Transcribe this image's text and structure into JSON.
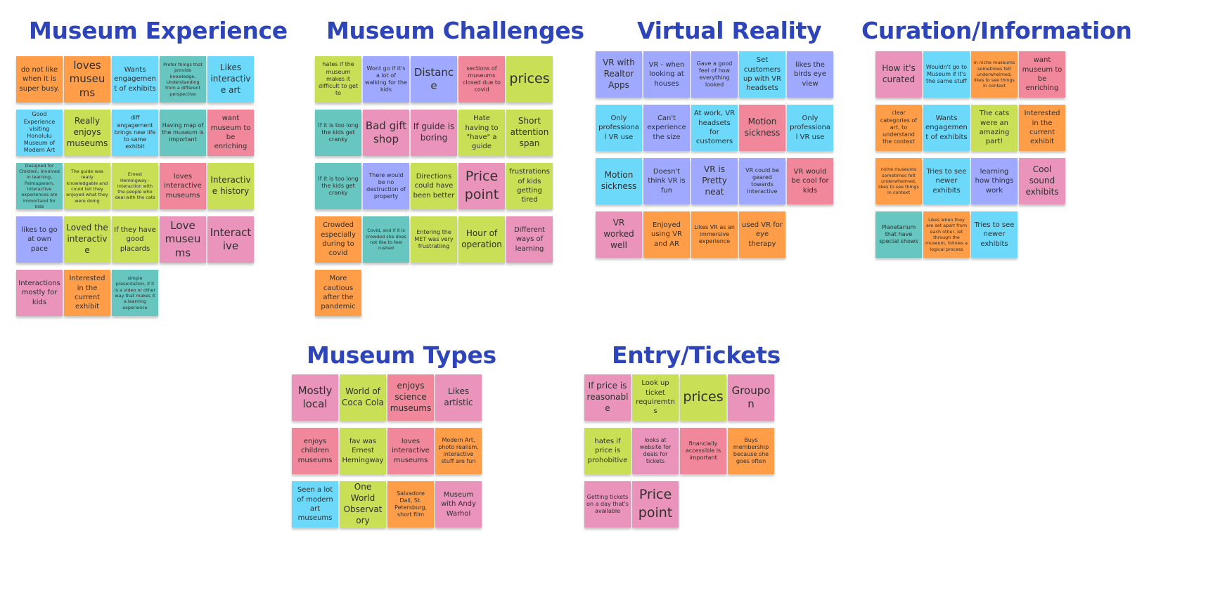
{
  "clusters": [
    {
      "id": "museum-experience",
      "title": "Museum Experience",
      "notes": [
        {
          "text": "do not like when it is super busy.",
          "color": "#ff9d48"
        },
        {
          "text": "loves museums",
          "color": "#ff9d48"
        },
        {
          "text": "Wants engagement of exhibits",
          "color": "#6cd8fa"
        },
        {
          "text": "Prefer things that provide knowledge, Understanding from a different perspective",
          "color": "#67c6c0"
        },
        {
          "text": "Likes interactive art",
          "color": "#6cd8fa"
        },
        {
          "text": "Good Experience visiting Honolulu Museum of Modern Art",
          "color": "#6cd8fa"
        },
        {
          "text": "Really enjoys museums",
          "color": "#c9df56"
        },
        {
          "text": "diff engagement brings new life to same exhibit",
          "color": "#6cd8fa"
        },
        {
          "text": "Having map of the museum is important",
          "color": "#67c6c0"
        },
        {
          "text": "want museum to be enriching",
          "color": "#f0879a"
        },
        {
          "text": "Designed for Children, Involved in learning, Palmuparam, Interactive experiences are immortand for kids",
          "color": "#67c6c0"
        },
        {
          "text": "The guide was really knowledgable and could tell they enjoyed what they were doing",
          "color": "#c9df56"
        },
        {
          "text": "Ernest Hemingway - interaction with the people who deal with the cats",
          "color": "#c9df56"
        },
        {
          "text": "loves interactive museums",
          "color": "#f0879a"
        },
        {
          "text": "Interactive history",
          "color": "#c9df56"
        },
        {
          "text": "likes to go at own pace",
          "color": "#9ea9ff"
        },
        {
          "text": "Loved the interactive",
          "color": "#c9df56"
        },
        {
          "text": "If they have good placards",
          "color": "#c9df56"
        },
        {
          "text": "Love museums",
          "color": "#ea94bb"
        },
        {
          "text": "Interactive",
          "color": "#ea94bb"
        },
        {
          "text": "Interactions mostly for kids",
          "color": "#ea94bb"
        },
        {
          "text": "Interested in the current exhibit",
          "color": "#ff9d48"
        },
        {
          "text": "simple presentation, if it is a video or other way that makes it a learning experience",
          "color": "#67c6c0"
        }
      ]
    },
    {
      "id": "museum-challenges",
      "title": "Museum Challenges",
      "notes": [
        {
          "text": "hates if the museum makes it difficult to get to",
          "color": "#c9df56"
        },
        {
          "text": "Wont go if it's a lot of walking for the kids",
          "color": "#9ea9ff"
        },
        {
          "text": "Distance",
          "color": "#9ea9ff"
        },
        {
          "text": "sections of museums closed due to covid",
          "color": "#f0879a"
        },
        {
          "text": "prices",
          "color": "#c9df56"
        },
        {
          "text": "If it is too long the kids get cranky",
          "color": "#67c6c0"
        },
        {
          "text": "Bad gift shop",
          "color": "#ea94bb"
        },
        {
          "text": "If guide is boring",
          "color": "#ea94bb"
        },
        {
          "text": "Hate having to \"have\" a guide",
          "color": "#c9df56"
        },
        {
          "text": "Short attention span",
          "color": "#c9df56"
        },
        {
          "text": "If it is too long the kids get cranky",
          "color": "#67c6c0"
        },
        {
          "text": "There would be no destruction of property",
          "color": "#9ea9ff"
        },
        {
          "text": "Directions could have been better",
          "color": "#c9df56"
        },
        {
          "text": "Price point",
          "color": "#ea94bb"
        },
        {
          "text": "frustrations of kids getting tired",
          "color": "#c9df56"
        },
        {
          "text": "Crowded especially during to covid",
          "color": "#ff9d48"
        },
        {
          "text": "Covid, and if it is crowded she does not like to feel rushed",
          "color": "#67c6c0"
        },
        {
          "text": "Entering the MET was very frustratiing",
          "color": "#c9df56"
        },
        {
          "text": "Hour of operation",
          "color": "#c9df56"
        },
        {
          "text": "Different ways of learning",
          "color": "#ea94bb"
        },
        {
          "text": "More cautious after the pandemic",
          "color": "#ff9d48"
        }
      ]
    },
    {
      "id": "virtual-reality",
      "title": "Virtual Reality",
      "notes": [
        {
          "text": "VR with Realtor Apps",
          "color": "#9ea9ff"
        },
        {
          "text": "VR - when looking at houses",
          "color": "#9ea9ff"
        },
        {
          "text": "Gave a good feel of how everything looked",
          "color": "#9ea9ff"
        },
        {
          "text": "Set customers up with VR headsets",
          "color": "#6cd8fa"
        },
        {
          "text": "likes the birds eye view",
          "color": "#9ea9ff"
        },
        {
          "text": "Only professional VR use",
          "color": "#6cd8fa"
        },
        {
          "text": "Can't experience the size",
          "color": "#9ea9ff"
        },
        {
          "text": "At work, VR headsets for customers",
          "color": "#6cd8fa"
        },
        {
          "text": "Motion sickness",
          "color": "#f0879a"
        },
        {
          "text": "Only professional VR use",
          "color": "#6cd8fa"
        },
        {
          "text": "Motion sickness",
          "color": "#6cd8fa"
        },
        {
          "text": "Doesn't think VR is fun",
          "color": "#9ea9ff"
        },
        {
          "text": "VR is Pretty neat",
          "color": "#9ea9ff"
        },
        {
          "text": "VR could be geared towards interactive",
          "color": "#9ea9ff"
        },
        {
          "text": "VR would be cool for kids",
          "color": "#f0879a"
        },
        {
          "text": "VR worked well",
          "color": "#ea94bb"
        },
        {
          "text": "Enjoyed using VR and AR",
          "color": "#ff9d48"
        },
        {
          "text": "Likes VR as an immersive experience",
          "color": "#ff9d48"
        },
        {
          "text": "used VR for eye therapy",
          "color": "#ff9d48"
        }
      ]
    },
    {
      "id": "curation-information",
      "title": "Curation/Information",
      "notes": [
        {
          "text": "How it's curated",
          "color": "#ea94bb"
        },
        {
          "text": "Wouldn't go to Museum if it's the same stuff",
          "color": "#6cd8fa"
        },
        {
          "text": "in niche museums sometimes felt underwhelmed, likes to see things in context",
          "color": "#ff9d48"
        },
        {
          "text": "want museum to be enriching",
          "color": "#f0879a"
        },
        {
          "text": "clear categories of art, to understand the context",
          "color": "#ff9d48"
        },
        {
          "text": "Wants engagement of exhibits",
          "color": "#6cd8fa"
        },
        {
          "text": "The cats were an amazing part!",
          "color": "#c9df56"
        },
        {
          "text": "Interested in the current exhibit",
          "color": "#ff9d48"
        },
        {
          "text": "niche museums sometimes felt underwhelmed, likes to see things in context",
          "color": "#ff9d48"
        },
        {
          "text": "Tries to see newer exhibits",
          "color": "#6cd8fa"
        },
        {
          "text": "learning how things work",
          "color": "#9ea9ff"
        },
        {
          "text": "Cool sound exhibits",
          "color": "#ea94bb"
        },
        {
          "text": "Planetarium that have special shows",
          "color": "#67c6c0"
        },
        {
          "text": "Likes when they are set apart from each other, let through the museum, follows a logical process",
          "color": "#ff9d48"
        },
        {
          "text": "Tries to see newer exhibits",
          "color": "#6cd8fa"
        }
      ]
    },
    {
      "id": "museum-types",
      "title": "Museum Types",
      "notes": [
        {
          "text": "Mostly local",
          "color": "#ea94bb"
        },
        {
          "text": "World of Coca Cola",
          "color": "#c9df56"
        },
        {
          "text": "enjoys science museums",
          "color": "#f0879a"
        },
        {
          "text": "Likes artistic",
          "color": "#ea94bb"
        },
        {
          "text": "enjoys children museums",
          "color": "#f0879a"
        },
        {
          "text": "fav was Ernest Hemingway",
          "color": "#c9df56"
        },
        {
          "text": "loves interactive museums",
          "color": "#f0879a"
        },
        {
          "text": "Modern Art, photo realism, interactive stuff are fun",
          "color": "#ff9d48"
        },
        {
          "text": "Seen a lot of modern art museums",
          "color": "#6cd8fa"
        },
        {
          "text": "One World Observatory",
          "color": "#c9df56"
        },
        {
          "text": "Salvadore Dali, St. Petersburg, short film",
          "color": "#ff9d48"
        },
        {
          "text": "Museum with Andy Warhol",
          "color": "#ea94bb"
        }
      ]
    },
    {
      "id": "entry-tickets",
      "title": "Entry/Tickets",
      "notes": [
        {
          "text": "If price is reasonable",
          "color": "#ea94bb"
        },
        {
          "text": "Look up ticket requiremtns",
          "color": "#c9df56"
        },
        {
          "text": "prices",
          "color": "#c9df56"
        },
        {
          "text": "Groupon",
          "color": "#ea94bb"
        },
        {
          "text": "hates if price is prohobitive",
          "color": "#c9df56"
        },
        {
          "text": "looks at website for deals for tickets",
          "color": "#ea94bb"
        },
        {
          "text": "financially accessible is important",
          "color": "#f0879a"
        },
        {
          "text": "Buys membership because she goes often",
          "color": "#ff9d48"
        },
        {
          "text": "Getting tickets on a day that's available",
          "color": "#ea94bb"
        },
        {
          "text": "Price point",
          "color": "#ea94bb"
        }
      ]
    }
  ]
}
